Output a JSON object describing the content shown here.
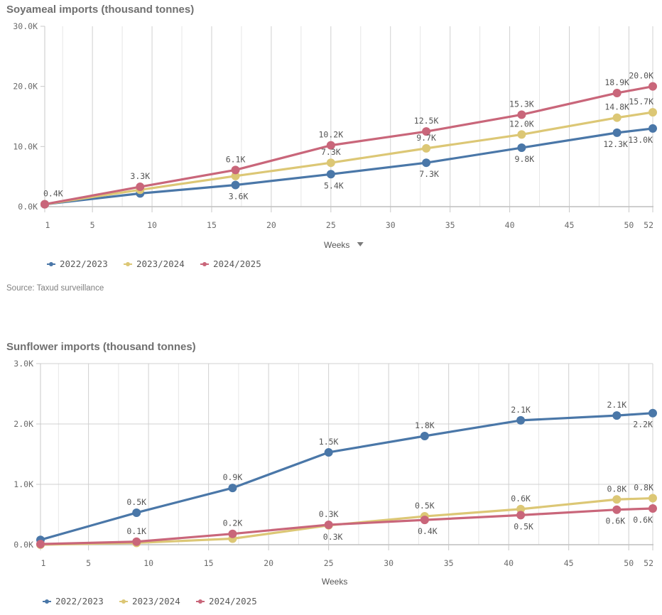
{
  "charts": [
    {
      "id": "soyameal",
      "title": "Soyameal imports (thousand tonnes)",
      "source": "Source: Taxud surveillance",
      "xlabel": "Weeks",
      "xlabel_dropdown": true,
      "horizontal_grid": false
    },
    {
      "id": "sunflower",
      "title": "Sunflower imports (thousand tonnes)",
      "source": "",
      "xlabel": "Weeks",
      "xlabel_dropdown": false,
      "horizontal_grid": true
    }
  ],
  "legend_icon": "line-dot-icon",
  "chart_data": [
    {
      "type": "line",
      "title": "Soyameal imports (thousand tonnes)",
      "xlabel": "Weeks",
      "ylabel": "",
      "x": [
        1,
        9,
        17,
        25,
        33,
        41,
        49,
        52
      ],
      "xlim": [
        1,
        52
      ],
      "xticks": [
        1,
        5,
        10,
        15,
        20,
        25,
        30,
        35,
        40,
        45,
        50,
        52
      ],
      "ylim": [
        0,
        30000
      ],
      "yticks": [
        0,
        10000,
        20000,
        30000
      ],
      "ytick_labels": [
        "0.0K",
        "10.0K",
        "20.0K",
        "30.0K"
      ],
      "grid": "vertical",
      "legend_position": "bottom-left",
      "series": [
        {
          "name": "2022/2023",
          "color": "#4a77a8",
          "values": [
            400,
            2200,
            3600,
            5400,
            7300,
            9800,
            12300,
            13000
          ],
          "labels": [
            "",
            "",
            "3.6K",
            "5.4K",
            "7.3K",
            "9.8K",
            "12.3K",
            "13.0K"
          ],
          "label_pos": [
            "",
            "",
            "below",
            "below",
            "below",
            "below",
            "below",
            "below"
          ]
        },
        {
          "name": "2023/2024",
          "color": "#dcc775",
          "values": [
            400,
            2800,
            5100,
            7300,
            9700,
            12000,
            14800,
            15700
          ],
          "labels": [
            "",
            "",
            "",
            "7.3K",
            "9.7K",
            "12.0K",
            "14.8K",
            "15.7K"
          ],
          "label_pos": [
            "",
            "",
            "",
            "above",
            "above",
            "above",
            "above",
            "above"
          ]
        },
        {
          "name": "2024/2025",
          "color": "#c9667a",
          "values": [
            400,
            3300,
            6100,
            10200,
            12500,
            15300,
            18900,
            20000
          ],
          "labels": [
            "0.4K",
            "3.3K",
            "6.1K",
            "10.2K",
            "12.5K",
            "15.3K",
            "18.9K",
            "20.0K"
          ],
          "label_pos": [
            "above-right",
            "above",
            "above",
            "above",
            "above",
            "above",
            "above",
            "above"
          ]
        }
      ]
    },
    {
      "type": "line",
      "title": "Sunflower imports (thousand tonnes)",
      "xlabel": "Weeks",
      "ylabel": "",
      "x": [
        1,
        9,
        17,
        25,
        33,
        41,
        49,
        52
      ],
      "xlim": [
        1,
        52
      ],
      "xticks": [
        1,
        5,
        10,
        15,
        20,
        25,
        30,
        35,
        40,
        45,
        50,
        52
      ],
      "ylim": [
        0,
        3000
      ],
      "yticks": [
        0,
        1000,
        2000,
        3000
      ],
      "ytick_labels": [
        "0.0K",
        "1.0K",
        "2.0K",
        "3.0K"
      ],
      "grid": "both",
      "legend_position": "bottom-left",
      "series": [
        {
          "name": "2022/2023",
          "color": "#4a77a8",
          "values": [
            80,
            530,
            940,
            1530,
            1800,
            2060,
            2140,
            2180
          ],
          "labels": [
            "",
            "0.5K",
            "0.9K",
            "1.5K",
            "1.8K",
            "2.1K",
            "2.1K",
            "2.2K"
          ],
          "label_pos": [
            "",
            "above",
            "above",
            "above",
            "above",
            "above",
            "above",
            "below"
          ]
        },
        {
          "name": "2023/2024",
          "color": "#dcc775",
          "values": [
            0,
            30,
            100,
            320,
            470,
            590,
            750,
            770
          ],
          "labels": [
            "",
            "",
            "",
            "0.3K",
            "0.5K",
            "0.6K",
            "0.8K",
            "0.8K"
          ],
          "label_pos": [
            "",
            "",
            "",
            "below-right",
            "above",
            "above",
            "above",
            "above"
          ]
        },
        {
          "name": "2024/2025",
          "color": "#c9667a",
          "values": [
            10,
            50,
            180,
            330,
            410,
            490,
            580,
            600
          ],
          "labels": [
            "",
            "0.1K",
            "0.2K",
            "0.3K",
            "0.4K",
            "0.5K",
            "0.6K",
            "0.6K"
          ],
          "label_pos": [
            "",
            "above",
            "above",
            "above",
            "below",
            "below",
            "below",
            "below"
          ]
        }
      ]
    }
  ]
}
